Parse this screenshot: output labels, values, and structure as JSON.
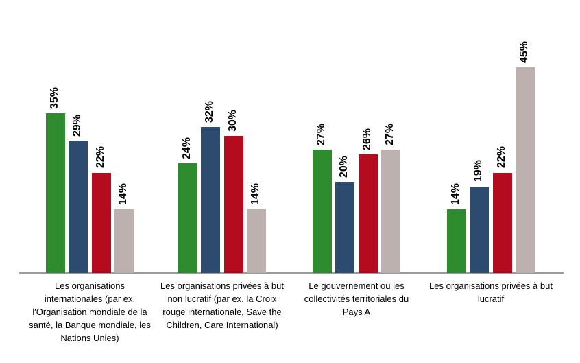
{
  "chart_data": {
    "type": "bar",
    "title": "",
    "xlabel": "",
    "ylabel": "",
    "grid": false,
    "legend": false,
    "background": "#FFFFFF",
    "axis_line_color": "#9B9B9B",
    "value_label_color": "#000000",
    "value_label_suffix": "%",
    "value_label_rotation": -90,
    "ylim": [
      0,
      50
    ],
    "categories": [
      "Les organisations internationales (par ex. l'Organisation mondiale de la santé, la Banque mondiale, les Nations Unies)",
      "Les organisations privées à but non lucratif (par ex. la Croix rouge internationale, Save the Children, Care International)",
      "Le gouvernement ou les collectivités territoriales du Pays A",
      "Les organisations privées à but lucratif"
    ],
    "category_lines": [
      [
        "Les organisations",
        "internationales (par ex.",
        "l'Organisation mondiale de la",
        "santé, la Banque mondiale, les",
        "Nations Unies)"
      ],
      [
        "Les organisations privées à but",
        "non lucratif (par ex. la Croix",
        "rouge internationale, Save the",
        "Children, Care International)"
      ],
      [
        "Le gouvernement ou les",
        "collectivités territoriales du",
        "Pays A"
      ],
      [
        "Les organisations privées à but",
        "lucratif"
      ]
    ],
    "series": [
      {
        "name": "green",
        "color": "#2E8B2E",
        "values": [
          35,
          24,
          27,
          14
        ]
      },
      {
        "name": "dark-blue",
        "color": "#2D4B6E",
        "values": [
          29,
          32,
          20,
          19
        ]
      },
      {
        "name": "red",
        "color": "#B40C1E",
        "values": [
          22,
          30,
          26,
          22
        ]
      },
      {
        "name": "taupe-gray",
        "color": "#BCB1AF",
        "values": [
          14,
          14,
          27,
          45
        ]
      }
    ]
  }
}
